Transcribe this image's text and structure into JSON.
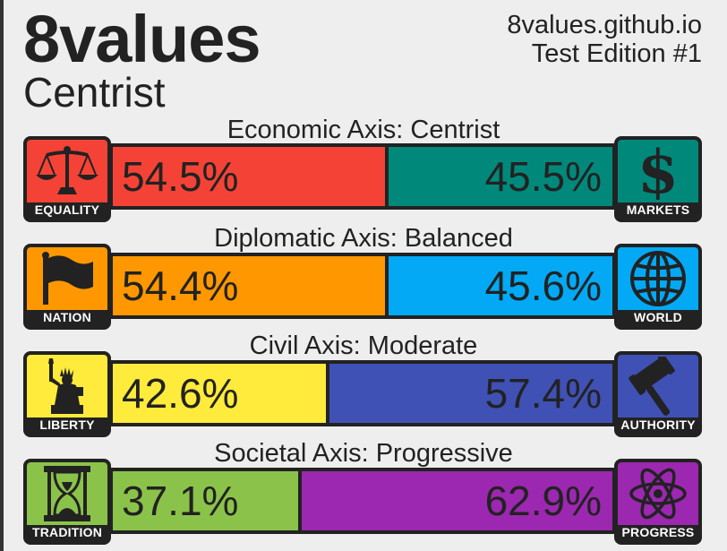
{
  "header": {
    "title": "8values",
    "subtitle": "Centrist",
    "site": "8values.github.io",
    "edition": "Test Edition #1"
  },
  "axes": [
    {
      "label": "Economic Axis: Centrist",
      "left": {
        "label": "EQUALITY",
        "icon": "scales-icon",
        "color": "#f44336",
        "percent": 54.5,
        "text": "54.5%"
      },
      "right": {
        "label": "MARKETS",
        "icon": "dollar-icon",
        "color": "#00897b",
        "percent": 45.5,
        "text": "45.5%"
      }
    },
    {
      "label": "Diplomatic Axis: Balanced",
      "left": {
        "label": "NATION",
        "icon": "flag-icon",
        "color": "#ff9800",
        "percent": 54.4,
        "text": "54.4%"
      },
      "right": {
        "label": "WORLD",
        "icon": "globe-icon",
        "color": "#03a9f4",
        "percent": 45.6,
        "text": "45.6%"
      }
    },
    {
      "label": "Civil Axis: Moderate",
      "left": {
        "label": "LIBERTY",
        "icon": "statue-of-liberty-icon",
        "color": "#ffeb3b",
        "percent": 42.6,
        "text": "42.6%"
      },
      "right": {
        "label": "AUTHORITY",
        "icon": "gavel-icon",
        "color": "#3f51b5",
        "percent": 57.4,
        "text": "57.4%"
      }
    },
    {
      "label": "Societal Axis: Progressive",
      "left": {
        "label": "TRADITION",
        "icon": "hourglass-icon",
        "color": "#8bc34a",
        "percent": 37.1,
        "text": "37.1%"
      },
      "right": {
        "label": "PROGRESS",
        "icon": "atom-icon",
        "color": "#9c27b0",
        "percent": 62.9,
        "text": "62.9%"
      }
    }
  ]
}
